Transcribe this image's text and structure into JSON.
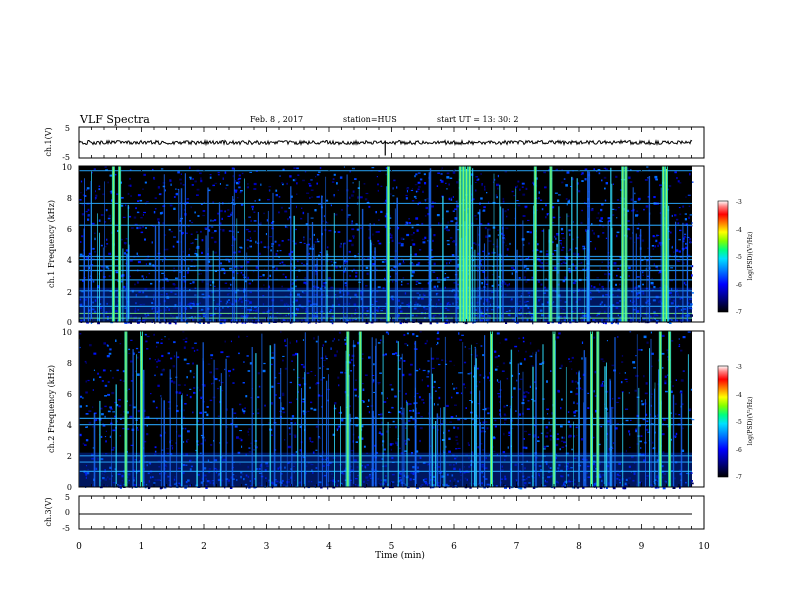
{
  "header": {
    "title": "VLF Spectra",
    "date": "Feb. 8 , 2017",
    "station": "station=HUS",
    "start": "start UT =  13: 30: 2"
  },
  "colorbar": {
    "label": "log(PSD)(V²/Hz)",
    "ticks": [
      "-3",
      "-4",
      "-5",
      "-6",
      "-7"
    ],
    "colors": [
      "#000000",
      "#00007f",
      "#0000ff",
      "#0080ff",
      "#00e0ff",
      "#00ff80",
      "#80ff00",
      "#ffff00",
      "#ff8000",
      "#ff0000",
      "#ff8080",
      "#ffffff"
    ]
  },
  "chart_data": [
    {
      "type": "line",
      "name": "ch1-waveform",
      "ylabel": "ch.1(V)",
      "ylim": [
        -5,
        5
      ],
      "yticks": [
        "5",
        "-5"
      ],
      "xlim": [
        0,
        10
      ],
      "level": 0,
      "spike_times": [
        4.9
      ]
    },
    {
      "type": "heatmap",
      "name": "ch1-spectrogram",
      "ylabel": "ch.1 Frequency (kHz)",
      "ylim": [
        0,
        10
      ],
      "yticks": [
        "10",
        "8",
        "6",
        "4",
        "2",
        "0"
      ],
      "xlim": [
        0,
        10
      ],
      "horizontal_lines_khz": [
        0.25,
        0.55,
        1.0,
        1.6,
        2.0,
        2.7,
        3.3,
        3.6,
        4.0,
        4.2,
        6.2,
        7.6,
        9.7
      ],
      "strong_bursts_min": [
        0.55,
        0.65,
        4.95,
        6.1,
        6.15,
        6.2,
        6.25,
        7.3,
        7.55,
        8.7,
        8.75,
        9.35,
        9.4
      ]
    },
    {
      "type": "heatmap",
      "name": "ch2-spectrogram",
      "ylabel": "ch.2 Frequency (kHz)",
      "ylim": [
        0,
        10
      ],
      "yticks": [
        "10",
        "8",
        "6",
        "4",
        "2",
        "0"
      ],
      "xlim": [
        0,
        10
      ],
      "horizontal_lines_khz": [
        1.0,
        1.6,
        2.0,
        4.0,
        4.4
      ],
      "strong_bursts_min": [
        0.75,
        1.0,
        4.3,
        4.5,
        6.6,
        7.6,
        8.2,
        8.3,
        9.3,
        9.45
      ]
    },
    {
      "type": "line",
      "name": "ch3-waveform",
      "ylabel": "ch.3(V)",
      "ylim": [
        -5,
        5
      ],
      "yticks": [
        "5",
        "0",
        "-5"
      ],
      "xlim": [
        0,
        10
      ],
      "level": -0.8
    }
  ],
  "xaxis": {
    "label": "Time (min)",
    "ticks": [
      "0",
      "1",
      "2",
      "3",
      "4",
      "5",
      "6",
      "7",
      "8",
      "9",
      "10"
    ]
  }
}
